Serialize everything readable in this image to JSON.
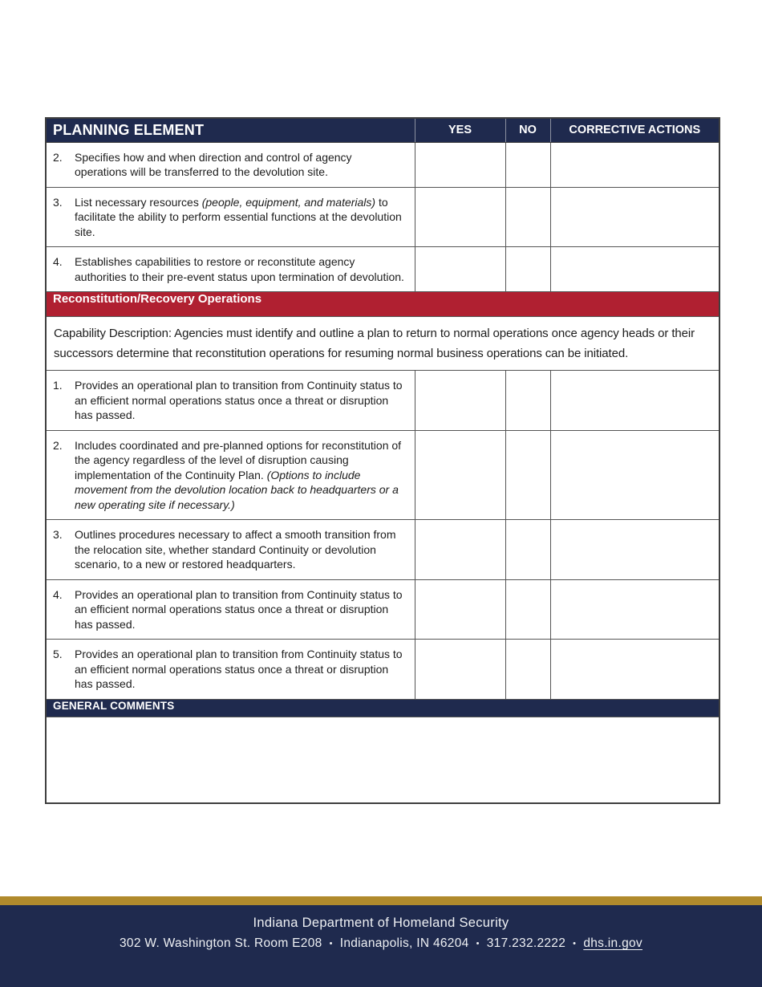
{
  "colors": {
    "navy": "#1f2a4e",
    "red": "#b02031",
    "gold": "#b08a2c",
    "border": "#3f3f3f"
  },
  "table": {
    "headers": {
      "planning": "PLANNING ELEMENT",
      "yes": "YES",
      "no": "NO",
      "corrective": "CORRECTIVE ACTIONS"
    },
    "sections": [
      {
        "type": "rows",
        "rows": [
          {
            "num": "2.",
            "segments": [
              {
                "text": "Specifies how and when direction and control of agency operations will be transferred to the devolution site.",
                "italic": false
              }
            ]
          },
          {
            "num": "3.",
            "segments": [
              {
                "text": "List necessary resources ",
                "italic": false
              },
              {
                "text": "(people, equipment, and materials)",
                "italic": true
              },
              {
                "text": " to facilitate the ability to perform essential functions at the devolution site.",
                "italic": false
              }
            ]
          },
          {
            "num": "4.",
            "segments": [
              {
                "text": "Establishes capabilities to restore or reconstitute agency authorities to their pre-event status upon termination of devolution.",
                "italic": false
              }
            ]
          }
        ]
      },
      {
        "type": "section-header",
        "label": "Reconstitution/Recovery Operations"
      },
      {
        "type": "description",
        "text": "Capability Description: Agencies must identify and outline a plan to return to normal operations once agency heads or their successors determine that reconstitution operations for resuming normal business operations can be initiated."
      },
      {
        "type": "rows",
        "rows": [
          {
            "num": "1.",
            "segments": [
              {
                "text": "Provides an operational plan to transition from Continuity status to an efficient normal operations status once a threat or disruption has passed.",
                "italic": false
              }
            ]
          },
          {
            "num": "2.",
            "segments": [
              {
                "text": "Includes coordinated and pre-planned options for reconstitution of the agency regardless of the level of disruption causing implementation of the Continuity Plan. ",
                "italic": false
              },
              {
                "text": "(Options to include movement from the devolution location back to headquarters or a new operating site if necessary.)",
                "italic": true
              }
            ]
          },
          {
            "num": "3.",
            "segments": [
              {
                "text": "Outlines procedures necessary to affect a smooth transition from the relocation site, whether standard Continuity or devolution scenario, to a new or restored headquarters.",
                "italic": false
              }
            ]
          },
          {
            "num": "4.",
            "segments": [
              {
                "text": "Provides an operational plan to transition from Continuity status to an efficient normal operations status once a threat or disruption has passed.",
                "italic": false
              }
            ]
          },
          {
            "num": "5.",
            "segments": [
              {
                "text": "Provides an operational plan to transition from Continuity status to an efficient normal operations status once a threat or disruption has passed.",
                "italic": false
              }
            ]
          }
        ]
      },
      {
        "type": "comments-header",
        "label": "GENERAL COMMENTS"
      },
      {
        "type": "comments-area"
      }
    ]
  },
  "footer": {
    "org": "Indiana Department of Homeland Security",
    "address": "302 W. Washington St. Room E208",
    "city": "Indianapolis, IN 46204",
    "phone": "317.232.2222",
    "website": "dhs.in.gov",
    "separator": "•"
  }
}
